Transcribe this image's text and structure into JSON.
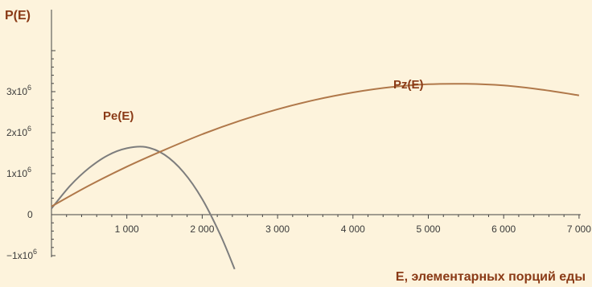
{
  "chart_data": {
    "type": "line",
    "xlabel": "E, элементарных порций еды",
    "ylabel": "P(E)",
    "xlim": [
      0,
      7000
    ],
    "ylim": [
      -1000000,
      4000000
    ],
    "x_ticks": [
      {
        "value": 1000,
        "label": "1 000"
      },
      {
        "value": 2000,
        "label": "2 000"
      },
      {
        "value": 3000,
        "label": "3 000"
      },
      {
        "value": 4000,
        "label": "4 000"
      },
      {
        "value": 5000,
        "label": "5 000"
      },
      {
        "value": 6000,
        "label": "6 000"
      },
      {
        "value": 7000,
        "label": "7 000"
      }
    ],
    "y_ticks": [
      {
        "value": -1000000,
        "base": "−1x10",
        "exp": "6"
      },
      {
        "value": 0,
        "base": "0",
        "exp": ""
      },
      {
        "value": 1000000,
        "base": "1x10",
        "exp": "6"
      },
      {
        "value": 2000000,
        "base": "2x10",
        "exp": "6"
      },
      {
        "value": 3000000,
        "base": "3x10",
        "exp": "6"
      }
    ],
    "series": [
      {
        "name": "Pe(E)",
        "color": "#7d7d7d",
        "x": [
          0,
          250,
          500,
          750,
          1000,
          1250,
          1500,
          1750,
          2000,
          2250,
          2430
        ],
        "y": [
          150000,
          710000,
          1140000,
          1450000,
          1620000,
          1650000,
          1460000,
          1040000,
          380000,
          -530000,
          -1330000
        ]
      },
      {
        "name": "Pz(E)",
        "color": "#b0784a",
        "x": [
          0,
          500,
          1000,
          1500,
          2000,
          2500,
          3000,
          3500,
          4000,
          4500,
          5000,
          5500,
          6000,
          6500,
          7000
        ],
        "y": [
          200000,
          710000,
          1170000,
          1580000,
          1960000,
          2290000,
          2570000,
          2800000,
          2980000,
          3110000,
          3180000,
          3190000,
          3150000,
          3050000,
          2910000
        ]
      }
    ]
  }
}
